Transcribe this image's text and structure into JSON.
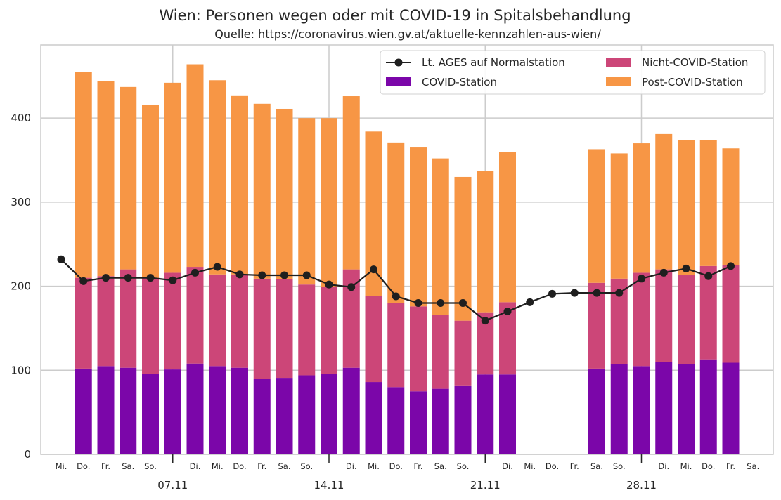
{
  "chart_data": {
    "type": "bar",
    "title": "Wien: Personen wegen oder mit COVID-19 in Spitalsbehandlung",
    "subtitle": "Quelle: https://coronavirus.wien.gv.at/aktuelle-kennzahlen-aus-wien/",
    "xlabel": "",
    "ylabel": "",
    "ylim": [
      0,
      487
    ],
    "yticks": [
      0,
      100,
      200,
      300,
      400
    ],
    "grid": true,
    "legend_position": "top-right",
    "categories": [
      "Mi.",
      "Do.",
      "Fr.",
      "Sa.",
      "So.",
      "",
      "Di.",
      "Mi.",
      "Do.",
      "Fr.",
      "Sa.",
      "So.",
      "",
      "Di.",
      "Mi.",
      "Do.",
      "Fr.",
      "Sa.",
      "So.",
      "",
      "Di.",
      "Mi.",
      "Do.",
      "Fr.",
      "Sa.",
      "So.",
      "",
      "Di.",
      "Mi.",
      "Do.",
      "Fr.",
      "Sa."
    ],
    "major_ticks": [
      {
        "index": 5,
        "label": "07.11"
      },
      {
        "index": 12,
        "label": "14.11"
      },
      {
        "index": 19,
        "label": "21.11"
      },
      {
        "index": 26,
        "label": "28.11"
      }
    ],
    "series": [
      {
        "name": "COVID-Station",
        "kind": "bar",
        "color": "#7b06a9",
        "values": [
          null,
          102,
          105,
          103,
          96,
          101,
          108,
          105,
          103,
          90,
          91,
          94,
          96,
          103,
          86,
          80,
          75,
          78,
          82,
          95,
          95,
          null,
          null,
          null,
          102,
          107,
          105,
          110,
          107,
          113,
          109,
          null
        ]
      },
      {
        "name": "Nicht-COVID-Station",
        "kind": "bar",
        "color": "#cc4678",
        "values": [
          null,
          108,
          107,
          117,
          114,
          115,
          115,
          109,
          111,
          119,
          117,
          108,
          103,
          117,
          102,
          100,
          101,
          88,
          77,
          74,
          86,
          null,
          null,
          null,
          102,
          102,
          111,
          110,
          106,
          111,
          116,
          null
        ]
      },
      {
        "name": "Post-COVID-Station",
        "kind": "bar",
        "color": "#f79645",
        "values": [
          null,
          245,
          232,
          217,
          206,
          226,
          241,
          231,
          213,
          208,
          203,
          198,
          201,
          206,
          196,
          191,
          189,
          186,
          171,
          168,
          179,
          null,
          null,
          null,
          159,
          149,
          154,
          161,
          161,
          150,
          139,
          null
        ]
      },
      {
        "name": "Lt. AGES auf Normalstation",
        "kind": "line",
        "color": "#1f1f1f",
        "values": [
          232,
          206,
          210,
          210,
          210,
          207,
          216,
          223,
          214,
          213,
          213,
          213,
          202,
          199,
          220,
          188,
          180,
          180,
          180,
          159,
          170,
          181,
          191,
          192,
          192,
          192,
          209,
          216,
          221,
          212,
          224,
          null
        ]
      }
    ]
  },
  "legend": {
    "items": [
      {
        "label": "Lt. AGES auf Normalstation",
        "color": "#1f1f1f"
      },
      {
        "label": "Nicht-COVID-Station",
        "color": "#cc4678"
      },
      {
        "label": "COVID-Station",
        "color": "#7b06a9"
      },
      {
        "label": "Post-COVID-Station",
        "color": "#f79645"
      }
    ]
  }
}
